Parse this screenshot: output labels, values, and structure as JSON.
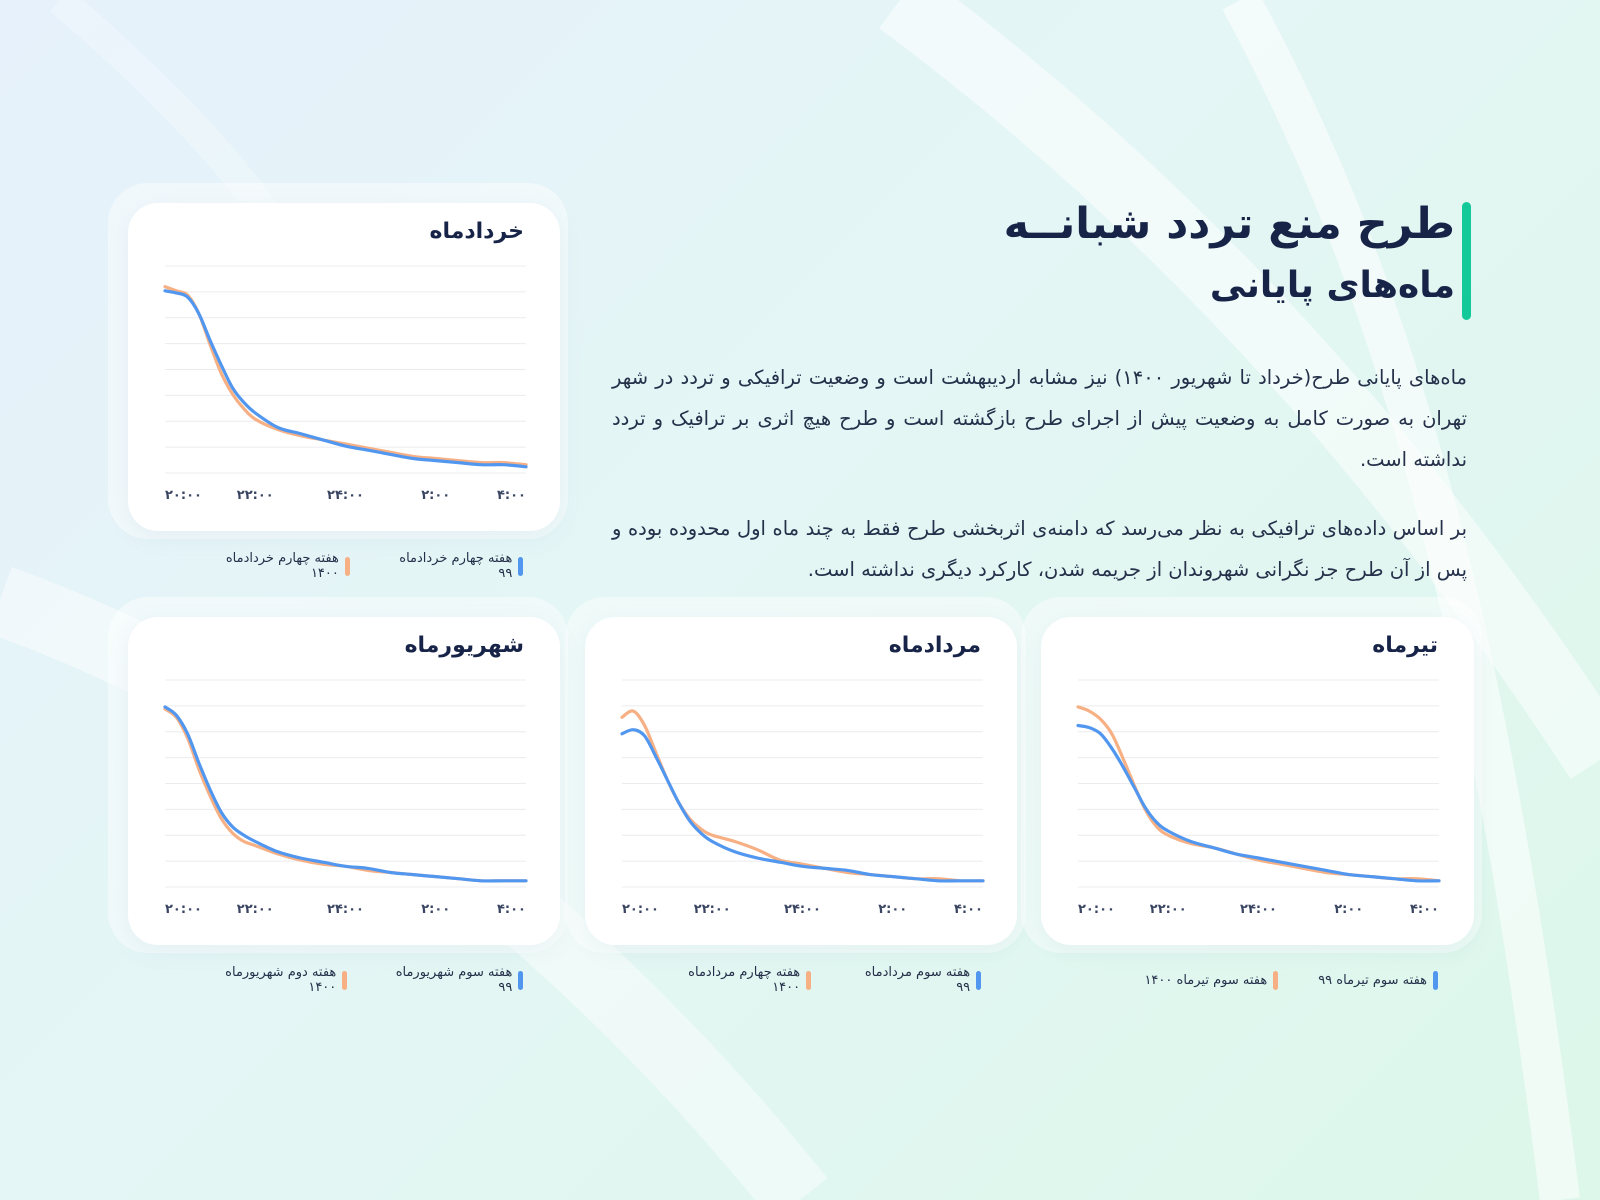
{
  "header": {
    "title": "طرح منع تردد شبانــه",
    "subtitle": "ماه‌های پایانی"
  },
  "body": {
    "paragraph_1": "ماه‌های پایانی طرح(خرداد تا شهریور ۱۴۰۰) نیز مشابه اردیبهشت است و وضعیت ترافیکی و تردد در شهر تهران به صورت کامل به وضعیت پیش از اجرای طرح بازگشته است و طرح هیچ اثری بر ترافیک و تردد نداشته است.",
    "paragraph_2": "بر اساس داده‌های ترافیکی به نظر می‌رسد که دامنه‌ی اثربخشی طرح فقط به چند ماه اول محدوده بوده و پس از آن طرح جز نگرانی شهروندان از جریمه شدن، کارکرد دیگری نداشته است."
  },
  "colors": {
    "series_99": "#5297ef",
    "series_1400": "#f7b084",
    "accent": "#13c99a",
    "grid": "#ececf0"
  },
  "chart_data": [
    {
      "id": "khordad",
      "type": "line",
      "title": "خردادماه",
      "x_ticks": [
        "۲۰:۰۰",
        "۲۲:۰۰",
        "۲۴:۰۰",
        "۲:۰۰",
        "۴:۰۰"
      ],
      "x": [
        0,
        0.25,
        0.5,
        0.75,
        1,
        1.25,
        1.5,
        1.75,
        2,
        2.5,
        3,
        3.5,
        4,
        4.5,
        5,
        5.5,
        6,
        6.5,
        7,
        7.5,
        8
      ],
      "ylim": [
        0,
        100
      ],
      "grid_lines": 8,
      "series": [
        {
          "name": "هفته چهارم خردادماه ۹۹",
          "color": "#5297ef",
          "values": [
            88,
            87,
            85,
            77,
            64,
            52,
            41,
            34,
            29,
            22,
            19,
            16,
            13,
            11,
            9,
            7,
            6,
            5,
            4,
            4,
            3
          ]
        },
        {
          "name": "هفته چهارم خردادماه ۱۴۰۰",
          "color": "#f7b084",
          "values": [
            90,
            88,
            86,
            77,
            62,
            48,
            38,
            31,
            26,
            21,
            18,
            16,
            14,
            12,
            10,
            8,
            7,
            6,
            5,
            5,
            4
          ]
        }
      ]
    },
    {
      "id": "tir",
      "type": "line",
      "title": "تیرماه",
      "x_ticks": [
        "۲۰:۰۰",
        "۲۲:۰۰",
        "۲۴:۰۰",
        "۲:۰۰",
        "۴:۰۰"
      ],
      "x": [
        0,
        0.25,
        0.5,
        0.75,
        1,
        1.25,
        1.5,
        1.75,
        2,
        2.5,
        3,
        3.5,
        4,
        4.5,
        5,
        5.5,
        6,
        6.5,
        7,
        7.5,
        8
      ],
      "ylim": [
        0,
        100
      ],
      "grid_lines": 8,
      "series": [
        {
          "name": "هفته سوم تیرماه ۹۹",
          "color": "#5297ef",
          "values": [
            78,
            77,
            74,
            67,
            58,
            48,
            38,
            31,
            27,
            22,
            19,
            16,
            14,
            12,
            10,
            8,
            6,
            5,
            4,
            3,
            3
          ]
        },
        {
          "name": "هفته سوم تیرماه ۱۴۰۰",
          "color": "#f7b084",
          "values": [
            87,
            85,
            81,
            74,
            62,
            49,
            37,
            29,
            25,
            21,
            19,
            16,
            13,
            11,
            9,
            7,
            6,
            5,
            4,
            4,
            3
          ]
        }
      ]
    },
    {
      "id": "mordad",
      "type": "line",
      "title": "مردادماه",
      "x_ticks": [
        "۲۰:۰۰",
        "۲۲:۰۰",
        "۲۴:۰۰",
        "۲:۰۰",
        "۴:۰۰"
      ],
      "x": [
        0,
        0.25,
        0.5,
        0.75,
        1,
        1.25,
        1.5,
        1.75,
        2,
        2.5,
        3,
        3.5,
        4,
        4.5,
        5,
        5.5,
        6,
        6.5,
        7,
        7.5,
        8
      ],
      "ylim": [
        0,
        100
      ],
      "grid_lines": 8,
      "series": [
        {
          "name": "هفته سوم مردادماه ۹۹",
          "color": "#5297ef",
          "values": [
            74,
            76,
            73,
            63,
            52,
            41,
            32,
            26,
            22,
            17,
            14,
            12,
            10,
            9,
            8,
            6,
            5,
            4,
            3,
            3,
            3
          ]
        },
        {
          "name": "هفته چهارم مردادماه ۱۴۰۰",
          "color": "#f7b084",
          "values": [
            82,
            85,
            78,
            65,
            52,
            41,
            33,
            28,
            25,
            22,
            18,
            13,
            11,
            9,
            7,
            6,
            5,
            4,
            4,
            3,
            3
          ]
        }
      ]
    },
    {
      "id": "shahrivar",
      "type": "line",
      "title": "شهریورماه",
      "x_ticks": [
        "۲۰:۰۰",
        "۲۲:۰۰",
        "۲۴:۰۰",
        "۲:۰۰",
        "۴:۰۰"
      ],
      "x": [
        0,
        0.25,
        0.5,
        0.75,
        1,
        1.25,
        1.5,
        1.75,
        2,
        2.5,
        3,
        3.5,
        4,
        4.5,
        5,
        5.5,
        6,
        6.5,
        7,
        7.5,
        8
      ],
      "ylim": [
        0,
        100
      ],
      "grid_lines": 8,
      "series": [
        {
          "name": "هفته سوم شهریورماه ۹۹",
          "color": "#5297ef",
          "values": [
            87,
            83,
            74,
            60,
            47,
            36,
            29,
            25,
            22,
            17,
            14,
            12,
            10,
            9,
            7,
            6,
            5,
            4,
            3,
            3,
            3
          ]
        },
        {
          "name": "هفته دوم شهریورماه ۱۴۰۰",
          "color": "#f7b084",
          "values": [
            86,
            82,
            72,
            57,
            44,
            33,
            26,
            22,
            20,
            16,
            13,
            11,
            10,
            8,
            7,
            6,
            5,
            4,
            3,
            3,
            3
          ]
        }
      ]
    }
  ]
}
